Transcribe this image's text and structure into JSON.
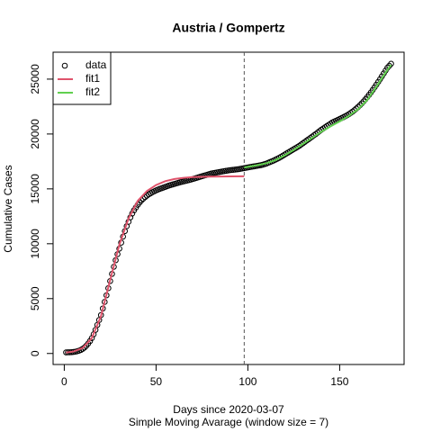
{
  "chart_data": {
    "type": "scatter",
    "title": "Austria / Gompertz",
    "x_label": "Days since 2020-03-07",
    "subtitle": "Simple Moving Avarage (window size = 7)",
    "y_label": "Cumulative Cases",
    "xlim": [
      -6.08,
      185.08
    ],
    "ylim": [
      -1004,
      27454
    ],
    "xticks": [
      0,
      50,
      100,
      150
    ],
    "yticks": [
      0,
      5000,
      10000,
      15000,
      20000,
      25000
    ],
    "vline": 98,
    "legend": "top-left",
    "series": [
      {
        "name": "data",
        "color": "#000000",
        "x": [
          1,
          2,
          3,
          4,
          5,
          6,
          7,
          8,
          9,
          10,
          11,
          12,
          13,
          14,
          15,
          16,
          17,
          18,
          19,
          20,
          21,
          22,
          23,
          24,
          25,
          26,
          27,
          28,
          29,
          30,
          31,
          32,
          33,
          34,
          35,
          36,
          37,
          38,
          39,
          40,
          41,
          42,
          43,
          44,
          45,
          46,
          47,
          48,
          49,
          50,
          51,
          52,
          53,
          54,
          55,
          56,
          57,
          58,
          59,
          60,
          61,
          62,
          63,
          64,
          65,
          66,
          67,
          68,
          69,
          70,
          71,
          72,
          73,
          74,
          75,
          76,
          77,
          78,
          79,
          80,
          81,
          82,
          83,
          84,
          85,
          86,
          87,
          88,
          89,
          90,
          91,
          92,
          93,
          94,
          95,
          96,
          97,
          98,
          99,
          100,
          101,
          102,
          103,
          104,
          105,
          106,
          107,
          108,
          109,
          110,
          111,
          112,
          113,
          114,
          115,
          116,
          117,
          118,
          119,
          120,
          121,
          122,
          123,
          124,
          125,
          126,
          127,
          128,
          129,
          130,
          131,
          132,
          133,
          134,
          135,
          136,
          137,
          138,
          139,
          140,
          141,
          142,
          143,
          144,
          145,
          146,
          147,
          148,
          149,
          150,
          151,
          152,
          153,
          154,
          155,
          156,
          157,
          158,
          159,
          160,
          161,
          162,
          163,
          164,
          165,
          166,
          167,
          168,
          169,
          170,
          171,
          172,
          173,
          174,
          175,
          176,
          177,
          178
        ],
        "values": [
          100,
          105,
          110,
          120,
          140,
          165,
          200,
          250,
          320,
          420,
          540,
          700,
          900,
          1130,
          1400,
          1750,
          2150,
          2600,
          3050,
          3500,
          4100,
          4700,
          5300,
          5950,
          6600,
          7250,
          7900,
          8500,
          9050,
          9550,
          10100,
          10650,
          11150,
          11600,
          12000,
          12400,
          12750,
          13050,
          13300,
          13550,
          13750,
          13950,
          14100,
          14250,
          14380,
          14500,
          14600,
          14700,
          14780,
          14860,
          14930,
          15000,
          15060,
          15120,
          15180,
          15240,
          15300,
          15350,
          15400,
          15450,
          15500,
          15550,
          15600,
          15640,
          15680,
          15720,
          15760,
          15800,
          15850,
          15900,
          15950,
          16000,
          16050,
          16100,
          16150,
          16200,
          16250,
          16300,
          16350,
          16400,
          16430,
          16460,
          16490,
          16520,
          16550,
          16580,
          16610,
          16640,
          16670,
          16700,
          16720,
          16740,
          16760,
          16780,
          16800,
          16830,
          16860,
          16890,
          16920,
          16950,
          16980,
          17010,
          17040,
          17070,
          17100,
          17130,
          17160,
          17200,
          17250,
          17300,
          17370,
          17440,
          17510,
          17580,
          17660,
          17740,
          17820,
          17920,
          18020,
          18120,
          18220,
          18320,
          18420,
          18520,
          18620,
          18720,
          18820,
          18920,
          19040,
          19160,
          19280,
          19400,
          19520,
          19640,
          19760,
          19880,
          20000,
          20130,
          20260,
          20390,
          20500,
          20610,
          20720,
          20830,
          20940,
          21050,
          21130,
          21210,
          21290,
          21370,
          21450,
          21530,
          21620,
          21710,
          21810,
          21920,
          22040,
          22170,
          22310,
          22460,
          22620,
          22790,
          22970,
          23160,
          23360,
          23570,
          23790,
          24020,
          24260,
          24500,
          24750,
          25000,
          25260,
          25520,
          25780,
          26040,
          26220,
          26400
        ]
      },
      {
        "name": "fit1",
        "color": "#DF536B",
        "x": [
          1,
          5,
          10,
          15,
          20,
          25,
          30,
          35,
          40,
          45,
          50,
          55,
          60,
          65,
          70,
          80,
          90,
          98
        ],
        "values": [
          80,
          180,
          500,
          1400,
          3400,
          6700,
          9900,
          12300,
          13900,
          14800,
          15350,
          15700,
          15900,
          16000,
          16070,
          16120,
          16140,
          16150
        ]
      },
      {
        "name": "fit2",
        "color": "#61D04F",
        "x": [
          98,
          105,
          110,
          115,
          120,
          125,
          130,
          135,
          140,
          145,
          150,
          155,
          160,
          165,
          170,
          175,
          178
        ],
        "values": [
          16950,
          17150,
          17330,
          17620,
          18050,
          18550,
          19100,
          19650,
          20200,
          20700,
          21150,
          21650,
          22250,
          23100,
          24300,
          25600,
          26300
        ]
      }
    ]
  }
}
